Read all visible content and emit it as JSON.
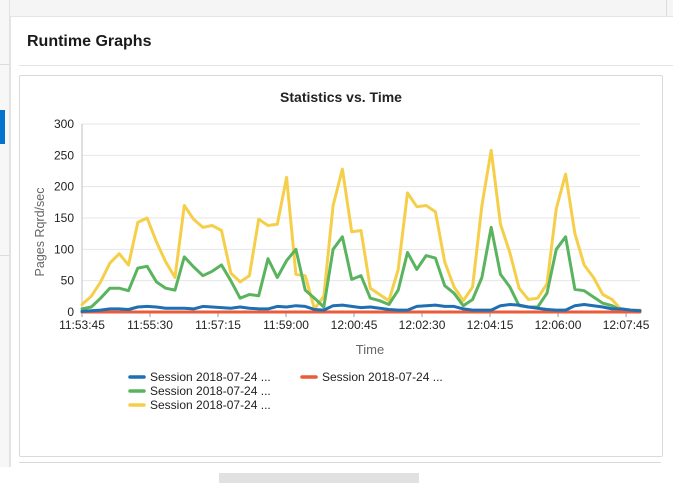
{
  "page": {
    "section_title": "Runtime Graphs"
  },
  "chart_data": {
    "type": "line",
    "title": "Statistics vs. Time",
    "xlabel": "Time",
    "ylabel": "Pages Rqrd/sec",
    "ylim": [
      0,
      300
    ],
    "yticks": [
      0,
      50,
      100,
      150,
      200,
      250,
      300
    ],
    "x_tick_labels": [
      "11:53:45",
      "11:55:30",
      "11:57:15",
      "11:59:00",
      "12:00:45",
      "12:02:30",
      "12:04:15",
      "12:06:00",
      "12:07:45"
    ],
    "legend_position": "bottom",
    "grid": true,
    "series": [
      {
        "name": "Session 2018-07-24 ...",
        "color": "#1f6fb2",
        "values": [
          1,
          2,
          3,
          5,
          5,
          4,
          8,
          9,
          8,
          6,
          6,
          6,
          5,
          9,
          8,
          7,
          6,
          8,
          6,
          5,
          5,
          9,
          8,
          10,
          9,
          4,
          3,
          10,
          11,
          9,
          7,
          8,
          6,
          4,
          3,
          3,
          9,
          10,
          11,
          9,
          9,
          5,
          3,
          3,
          3,
          10,
          12,
          11,
          8,
          6,
          4,
          3,
          3,
          10,
          12,
          10,
          8,
          5,
          5,
          3,
          2
        ]
      },
      {
        "name": "Session 2018-07-24 ...",
        "color": "#ea5b3a",
        "values": [
          0,
          0,
          0,
          0,
          0,
          0,
          0,
          0,
          0,
          0,
          0,
          0,
          0,
          0,
          0,
          0,
          0,
          0,
          0,
          0,
          0,
          0,
          0,
          0,
          0,
          0,
          0,
          0,
          0,
          0,
          0,
          0,
          0,
          0,
          0,
          0,
          0,
          0,
          0,
          0,
          0,
          0,
          0,
          0,
          0,
          0,
          0,
          0,
          0,
          0,
          0,
          0,
          0,
          0,
          0,
          0,
          0,
          0,
          0,
          0,
          0
        ]
      },
      {
        "name": "Session 2018-07-24 ...",
        "color": "#5ab45f",
        "values": [
          5,
          8,
          22,
          38,
          38,
          34,
          70,
          73,
          48,
          38,
          35,
          88,
          72,
          58,
          65,
          75,
          50,
          22,
          28,
          26,
          85,
          55,
          82,
          100,
          35,
          22,
          8,
          100,
          120,
          52,
          58,
          22,
          18,
          12,
          35,
          95,
          68,
          90,
          86,
          42,
          30,
          10,
          20,
          55,
          135,
          60,
          40,
          10,
          8,
          8,
          30,
          100,
          120,
          36,
          34,
          24,
          14,
          10,
          2,
          2,
          2
        ]
      },
      {
        "name": "Session 2018-07-24 ...",
        "color": "#f6cf4a",
        "values": [
          12,
          25,
          48,
          78,
          93,
          75,
          143,
          150,
          112,
          80,
          55,
          170,
          148,
          135,
          138,
          130,
          62,
          48,
          58,
          148,
          138,
          140,
          215,
          60,
          58,
          5,
          25,
          170,
          228,
          128,
          130,
          38,
          28,
          18,
          68,
          190,
          168,
          170,
          160,
          80,
          40,
          18,
          40,
          170,
          258,
          140,
          95,
          38,
          20,
          22,
          45,
          165,
          220,
          125,
          75,
          55,
          28,
          20,
          3,
          3,
          3
        ]
      }
    ]
  }
}
